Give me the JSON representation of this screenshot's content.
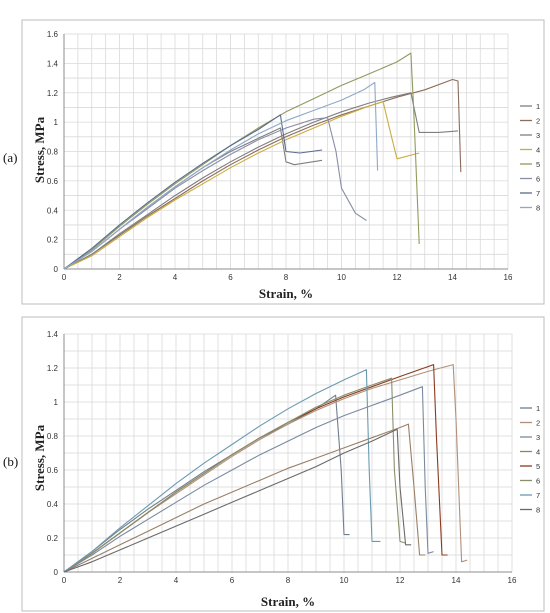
{
  "chart_data": [
    {
      "type": "line",
      "panel_label": "(a)",
      "xlabel": "Strain, %",
      "ylabel": "Stress, MPa",
      "xlim": [
        0,
        16
      ],
      "ylim": [
        0,
        1.6
      ],
      "xticks": [
        0,
        2,
        4,
        6,
        8,
        10,
        12,
        14,
        16
      ],
      "yticks": [
        0,
        0.2,
        0.4,
        0.6,
        0.8,
        1,
        1.2,
        1.4,
        1.6
      ],
      "grid": "on",
      "legend_position": "right",
      "series": [
        {
          "name": "1",
          "color": "#7f7f7f",
          "points": [
            [
              0,
              0
            ],
            [
              1,
              0.12
            ],
            [
              2,
              0.27
            ],
            [
              3,
              0.42
            ],
            [
              4,
              0.56
            ],
            [
              5,
              0.69
            ],
            [
              6,
              0.8
            ],
            [
              7,
              0.89
            ],
            [
              7.8,
              0.96
            ],
            [
              8.0,
              0.73
            ],
            [
              8.3,
              0.71
            ],
            [
              9.3,
              0.74
            ]
          ]
        },
        {
          "name": "2",
          "color": "#8c6d5a",
          "points": [
            [
              0,
              0
            ],
            [
              1,
              0.1
            ],
            [
              2,
              0.23
            ],
            [
              3,
              0.36
            ],
            [
              4,
              0.48
            ],
            [
              5,
              0.6
            ],
            [
              6,
              0.71
            ],
            [
              7,
              0.81
            ],
            [
              8,
              0.9
            ],
            [
              9,
              0.98
            ],
            [
              10,
              1.05
            ],
            [
              11,
              1.11
            ],
            [
              12,
              1.17
            ],
            [
              13,
              1.22
            ],
            [
              14,
              1.29
            ],
            [
              14.2,
              1.28
            ],
            [
              14.3,
              0.66
            ]
          ]
        },
        {
          "name": "3",
          "color": "#7f7f7f",
          "points": [
            [
              0,
              0
            ],
            [
              1,
              0.1
            ],
            [
              2,
              0.24
            ],
            [
              3,
              0.37
            ],
            [
              4,
              0.5
            ],
            [
              5,
              0.62
            ],
            [
              6,
              0.73
            ],
            [
              7,
              0.83
            ],
            [
              8,
              0.92
            ],
            [
              9,
              1.0
            ],
            [
              10,
              1.07
            ],
            [
              11,
              1.13
            ],
            [
              11.8,
              1.17
            ],
            [
              12.5,
              1.2
            ],
            [
              12.8,
              0.93
            ],
            [
              13.5,
              0.93
            ],
            [
              14.2,
              0.94
            ]
          ]
        },
        {
          "name": "4",
          "color": "#c9ad3f",
          "points": [
            [
              0,
              0
            ],
            [
              1,
              0.09
            ],
            [
              2,
              0.22
            ],
            [
              3,
              0.35
            ],
            [
              4,
              0.47
            ],
            [
              5,
              0.58
            ],
            [
              6,
              0.69
            ],
            [
              7,
              0.79
            ],
            [
              8,
              0.88
            ],
            [
              9,
              0.96
            ],
            [
              10,
              1.04
            ],
            [
              11,
              1.11
            ],
            [
              11.5,
              1.14
            ],
            [
              11.8,
              0.9
            ],
            [
              12,
              0.75
            ],
            [
              12.8,
              0.79
            ]
          ]
        },
        {
          "name": "5",
          "color": "#8e9b5c",
          "points": [
            [
              0,
              0
            ],
            [
              1,
              0.13
            ],
            [
              2,
              0.29
            ],
            [
              3,
              0.44
            ],
            [
              4,
              0.58
            ],
            [
              5,
              0.71
            ],
            [
              6,
              0.84
            ],
            [
              7,
              0.96
            ],
            [
              8,
              1.07
            ],
            [
              9,
              1.16
            ],
            [
              10,
              1.25
            ],
            [
              11,
              1.33
            ],
            [
              12,
              1.41
            ],
            [
              12.5,
              1.47
            ],
            [
              12.6,
              1.1
            ],
            [
              12.8,
              0.17
            ]
          ]
        },
        {
          "name": "6",
          "color": "#8a8fa8",
          "points": [
            [
              0,
              0
            ],
            [
              1,
              0.12
            ],
            [
              2,
              0.27
            ],
            [
              3,
              0.41
            ],
            [
              4,
              0.55
            ],
            [
              5,
              0.67
            ],
            [
              6,
              0.78
            ],
            [
              7,
              0.88
            ],
            [
              8,
              0.96
            ],
            [
              9,
              1.02
            ],
            [
              9.5,
              1.03
            ],
            [
              9.8,
              0.8
            ],
            [
              10,
              0.55
            ],
            [
              10.5,
              0.38
            ],
            [
              10.9,
              0.33
            ]
          ]
        },
        {
          "name": "7",
          "color": "#5a6b8c",
          "points": [
            [
              0,
              0
            ],
            [
              1,
              0.14
            ],
            [
              2,
              0.3
            ],
            [
              3,
              0.45
            ],
            [
              4,
              0.59
            ],
            [
              5,
              0.72
            ],
            [
              6,
              0.84
            ],
            [
              7,
              0.95
            ],
            [
              7.8,
              1.05
            ],
            [
              8.0,
              0.8
            ],
            [
              8.5,
              0.79
            ],
            [
              9.3,
              0.81
            ]
          ]
        },
        {
          "name": "8",
          "color": "#8fa8c8",
          "points": [
            [
              0,
              0
            ],
            [
              1,
              0.12
            ],
            [
              2,
              0.27
            ],
            [
              3,
              0.42
            ],
            [
              4,
              0.56
            ],
            [
              5,
              0.69
            ],
            [
              6,
              0.81
            ],
            [
              7,
              0.92
            ],
            [
              8,
              1.01
            ],
            [
              9,
              1.08
            ],
            [
              10,
              1.15
            ],
            [
              10.8,
              1.22
            ],
            [
              11.2,
              1.27
            ],
            [
              11.3,
              0.67
            ]
          ]
        }
      ]
    },
    {
      "type": "line",
      "panel_label": "(b)",
      "xlabel": "Strain, %",
      "ylabel": "Stress, MPa",
      "xlim": [
        0,
        16
      ],
      "ylim": [
        0,
        1.4
      ],
      "xticks": [
        0,
        2,
        4,
        6,
        8,
        10,
        12,
        14,
        16
      ],
      "yticks": [
        0,
        0.2,
        0.4,
        0.6,
        0.8,
        1,
        1.2,
        1.4
      ],
      "grid": "on",
      "legend_position": "right",
      "series": [
        {
          "name": "1",
          "color": "#6f7f8f",
          "points": [
            [
              0,
              0
            ],
            [
              1,
              0.12
            ],
            [
              2,
              0.25
            ],
            [
              3,
              0.37
            ],
            [
              4,
              0.48
            ],
            [
              5,
              0.59
            ],
            [
              6,
              0.69
            ],
            [
              7,
              0.79
            ],
            [
              8,
              0.87
            ],
            [
              9,
              0.96
            ],
            [
              9.7,
              1.04
            ],
            [
              9.9,
              0.6
            ],
            [
              10.0,
              0.22
            ],
            [
              10.2,
              0.22
            ]
          ]
        },
        {
          "name": "2",
          "color": "#b0907a",
          "points": [
            [
              0,
              0
            ],
            [
              1,
              0.11
            ],
            [
              2,
              0.23
            ],
            [
              3,
              0.35
            ],
            [
              4,
              0.46
            ],
            [
              5,
              0.57
            ],
            [
              6,
              0.68
            ],
            [
              7,
              0.78
            ],
            [
              8,
              0.87
            ],
            [
              9,
              0.95
            ],
            [
              10,
              1.02
            ],
            [
              11,
              1.08
            ],
            [
              12,
              1.13
            ],
            [
              13,
              1.18
            ],
            [
              13.9,
              1.22
            ],
            [
              14.0,
              0.9
            ],
            [
              14.2,
              0.06
            ],
            [
              14.4,
              0.07
            ]
          ]
        },
        {
          "name": "3",
          "color": "#7a8aa0",
          "points": [
            [
              0,
              0
            ],
            [
              1,
              0.1
            ],
            [
              2,
              0.21
            ],
            [
              3,
              0.31
            ],
            [
              4,
              0.41
            ],
            [
              5,
              0.51
            ],
            [
              6,
              0.6
            ],
            [
              7,
              0.69
            ],
            [
              8,
              0.77
            ],
            [
              9,
              0.85
            ],
            [
              10,
              0.92
            ],
            [
              11,
              0.98
            ],
            [
              12,
              1.04
            ],
            [
              12.8,
              1.09
            ],
            [
              12.9,
              0.5
            ],
            [
              13.0,
              0.11
            ],
            [
              13.2,
              0.12
            ]
          ]
        },
        {
          "name": "4",
          "color": "#9a7f66",
          "points": [
            [
              0,
              0
            ],
            [
              1,
              0.08
            ],
            [
              2,
              0.16
            ],
            [
              3,
              0.24
            ],
            [
              4,
              0.32
            ],
            [
              5,
              0.4
            ],
            [
              6,
              0.47
            ],
            [
              7,
              0.54
            ],
            [
              8,
              0.61
            ],
            [
              9,
              0.67
            ],
            [
              10,
              0.73
            ],
            [
              11,
              0.79
            ],
            [
              12,
              0.85
            ],
            [
              12.3,
              0.87
            ],
            [
              12.5,
              0.5
            ],
            [
              12.7,
              0.1
            ],
            [
              12.9,
              0.1
            ]
          ]
        },
        {
          "name": "5",
          "color": "#8b3a1e",
          "points": [
            [
              0,
              0
            ],
            [
              1,
              0.11
            ],
            [
              2,
              0.23
            ],
            [
              3,
              0.35
            ],
            [
              4,
              0.47
            ],
            [
              5,
              0.58
            ],
            [
              6,
              0.69
            ],
            [
              7,
              0.79
            ],
            [
              8,
              0.88
            ],
            [
              9,
              0.96
            ],
            [
              10,
              1.03
            ],
            [
              11,
              1.09
            ],
            [
              12,
              1.15
            ],
            [
              13.2,
              1.22
            ],
            [
              13.3,
              0.8
            ],
            [
              13.5,
              0.1
            ],
            [
              13.7,
              0.1
            ]
          ]
        },
        {
          "name": "6",
          "color": "#8a8f6a",
          "points": [
            [
              0,
              0
            ],
            [
              1,
              0.11
            ],
            [
              2,
              0.23
            ],
            [
              3,
              0.35
            ],
            [
              4,
              0.47
            ],
            [
              5,
              0.58
            ],
            [
              6,
              0.69
            ],
            [
              7,
              0.79
            ],
            [
              8,
              0.88
            ],
            [
              9,
              0.97
            ],
            [
              10,
              1.04
            ],
            [
              11,
              1.1
            ],
            [
              11.7,
              1.14
            ],
            [
              11.8,
              0.6
            ],
            [
              12.0,
              0.18
            ],
            [
              12.2,
              0.17
            ]
          ]
        },
        {
          "name": "7",
          "color": "#6a9ab0",
          "points": [
            [
              0,
              0
            ],
            [
              1,
              0.12
            ],
            [
              2,
              0.26
            ],
            [
              3,
              0.39
            ],
            [
              4,
              0.52
            ],
            [
              5,
              0.64
            ],
            [
              6,
              0.75
            ],
            [
              7,
              0.86
            ],
            [
              8,
              0.96
            ],
            [
              9,
              1.05
            ],
            [
              10,
              1.13
            ],
            [
              10.8,
              1.19
            ],
            [
              10.9,
              0.6
            ],
            [
              11.0,
              0.18
            ],
            [
              11.3,
              0.18
            ]
          ]
        },
        {
          "name": "8",
          "color": "#6a6a6a",
          "points": [
            [
              0,
              0
            ],
            [
              1,
              0.06
            ],
            [
              2,
              0.13
            ],
            [
              3,
              0.2
            ],
            [
              4,
              0.27
            ],
            [
              5,
              0.34
            ],
            [
              6,
              0.41
            ],
            [
              7,
              0.48
            ],
            [
              8,
              0.55
            ],
            [
              9,
              0.62
            ],
            [
              10,
              0.7
            ],
            [
              11,
              0.77
            ],
            [
              11.9,
              0.84
            ],
            [
              12.0,
              0.5
            ],
            [
              12.2,
              0.16
            ],
            [
              12.4,
              0.16
            ]
          ]
        }
      ]
    }
  ]
}
